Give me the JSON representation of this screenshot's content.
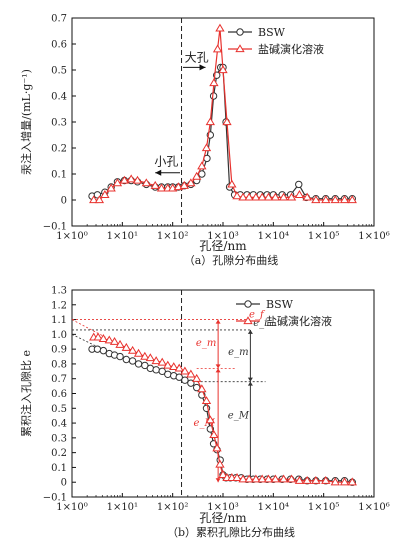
{
  "chart_data": [
    {
      "type": "line",
      "xscale": "log",
      "xlim": [
        1,
        1000000
      ],
      "ylim": [
        -0.1,
        0.7
      ],
      "xlabel": "孔径/nm",
      "ylabel": "汞注入增量/(mL·g⁻¹)",
      "caption": "（a）孔隙分布曲线",
      "x_ticks": [
        "1×10⁰",
        "1×10¹",
        "1×10²",
        "1×10³",
        "1×10⁴",
        "1×10⁵",
        "1×10⁶"
      ],
      "y_ticks": [
        "−0.1",
        "0",
        "0.1",
        "0.2",
        "0.3",
        "0.4",
        "0.5",
        "0.6",
        "0.7"
      ],
      "legend_position": "top-right",
      "divider_x": 150,
      "annotations": [
        {
          "text": "大孔",
          "x": 160,
          "y": 0.51,
          "arrow": "right"
        },
        {
          "text": "小孔",
          "x": 140,
          "y": 0.105,
          "arrow": "left"
        }
      ],
      "series": [
        {
          "name": "BSW",
          "color": "#333333",
          "marker": "circle",
          "points": [
            [
              2.5,
              0.015
            ],
            [
              3.2,
              0.02
            ],
            [
              4.5,
              0.03
            ],
            [
              6,
              0.05
            ],
            [
              8,
              0.07
            ],
            [
              11,
              0.075
            ],
            [
              15,
              0.075
            ],
            [
              20,
              0.07
            ],
            [
              30,
              0.06
            ],
            [
              45,
              0.05
            ],
            [
              60,
              0.05
            ],
            [
              80,
              0.05
            ],
            [
              100,
              0.05
            ],
            [
              130,
              0.05
            ],
            [
              170,
              0.055
            ],
            [
              230,
              0.06
            ],
            [
              300,
              0.075
            ],
            [
              380,
              0.1
            ],
            [
              480,
              0.16
            ],
            [
              560,
              0.25
            ],
            [
              650,
              0.4
            ],
            [
              750,
              0.48
            ],
            [
              900,
              0.51
            ],
            [
              1000,
              0.51
            ],
            [
              1150,
              0.3
            ],
            [
              1350,
              0.05
            ],
            [
              1700,
              0.02
            ],
            [
              2200,
              0.02
            ],
            [
              3000,
              0.02
            ],
            [
              4000,
              0.02
            ],
            [
              5500,
              0.02
            ],
            [
              7500,
              0.02
            ],
            [
              10000,
              0.02
            ],
            [
              15000,
              0.02
            ],
            [
              22000,
              0.02
            ],
            [
              32000,
              0.06
            ],
            [
              45000,
              0.01
            ],
            [
              70000,
              0.005
            ],
            [
              110000,
              0.005
            ],
            [
              170000,
              0.005
            ],
            [
              260000,
              0.005
            ],
            [
              370000,
              0.005
            ]
          ]
        },
        {
          "name": "盐碱演化溶液",
          "color": "#e8322e",
          "marker": "triangle",
          "points": [
            [
              2.7,
              0.0
            ],
            [
              3.5,
              0.0
            ],
            [
              4.5,
              0.02
            ],
            [
              6,
              0.045
            ],
            [
              8,
              0.065
            ],
            [
              11,
              0.075
            ],
            [
              15,
              0.08
            ],
            [
              20,
              0.075
            ],
            [
              30,
              0.065
            ],
            [
              45,
              0.055
            ],
            [
              60,
              0.045
            ],
            [
              80,
              0.045
            ],
            [
              100,
              0.045
            ],
            [
              130,
              0.05
            ],
            [
              170,
              0.055
            ],
            [
              230,
              0.065
            ],
            [
              300,
              0.09
            ],
            [
              380,
              0.13
            ],
            [
              470,
              0.2
            ],
            [
              560,
              0.3
            ],
            [
              660,
              0.45
            ],
            [
              780,
              0.58
            ],
            [
              870,
              0.66
            ],
            [
              1000,
              0.5
            ],
            [
              1200,
              0.3
            ],
            [
              1500,
              0.06
            ],
            [
              1900,
              0.015
            ],
            [
              2500,
              0.01
            ],
            [
              3300,
              0.01
            ],
            [
              4500,
              0.01
            ],
            [
              6000,
              0.01
            ],
            [
              8000,
              0.01
            ],
            [
              11000,
              0.01
            ],
            [
              16000,
              0.01
            ],
            [
              23000,
              0.01
            ],
            [
              33000,
              0.02
            ],
            [
              47000,
              0.01
            ],
            [
              70000,
              0.0
            ],
            [
              110000,
              0.0
            ],
            [
              170000,
              0.0
            ],
            [
              260000,
              0.0
            ],
            [
              370000,
              0.0
            ]
          ]
        }
      ]
    },
    {
      "type": "line",
      "xscale": "log",
      "xlim": [
        1,
        1000000
      ],
      "ylim": [
        -0.1,
        1.3
      ],
      "xlabel": "孔径/nm",
      "ylabel": "累积注入孔隙比 e",
      "caption": "（b）累积孔隙比分布曲线",
      "x_ticks": [
        "1×10⁰",
        "1×10¹",
        "1×10²",
        "1×10³",
        "1×10⁴",
        "1×10⁵",
        "1×10⁶"
      ],
      "y_ticks": [
        "−0.1",
        "0",
        "0.1",
        "0.2",
        "0.3",
        "0.4",
        "0.5",
        "0.6",
        "0.7",
        "0.8",
        "0.9",
        "1.0",
        "1.1",
        "1.2",
        "1.3"
      ],
      "legend_position": "top-right",
      "divider_x": 150,
      "annotations": [
        {
          "text": "e_f",
          "color": "#e8322e"
        },
        {
          "text": "e_i",
          "color": "#333333"
        },
        {
          "text": "e_m",
          "color": "#e8322e"
        },
        {
          "text": "e_m",
          "color": "#333333"
        },
        {
          "text": "e_M",
          "color": "#e8322e"
        },
        {
          "text": "e_M",
          "color": "#333333"
        }
      ],
      "reference_lines": {
        "red_top": 1.1,
        "black_top": 1.03,
        "red_mid": 0.77,
        "black_mid": 0.68,
        "red_bracket_x": 800,
        "black_bracket_x": 3500
      },
      "series": [
        {
          "name": "BSW",
          "color": "#333333",
          "marker": "circle",
          "points": [
            [
              2.5,
              0.9
            ],
            [
              3.2,
              0.9
            ],
            [
              4.2,
              0.89
            ],
            [
              5.5,
              0.87
            ],
            [
              7,
              0.86
            ],
            [
              9,
              0.85
            ],
            [
              12,
              0.83
            ],
            [
              16,
              0.82
            ],
            [
              21,
              0.8
            ],
            [
              28,
              0.79
            ],
            [
              36,
              0.77
            ],
            [
              47,
              0.76
            ],
            [
              62,
              0.75
            ],
            [
              80,
              0.73
            ],
            [
              105,
              0.72
            ],
            [
              135,
              0.71
            ],
            [
              175,
              0.69
            ],
            [
              230,
              0.67
            ],
            [
              300,
              0.64
            ],
            [
              380,
              0.59
            ],
            [
              470,
              0.5
            ],
            [
              560,
              0.36
            ],
            [
              650,
              0.26
            ],
            [
              760,
              0.22
            ],
            [
              880,
              0.15
            ],
            [
              1000,
              0.05
            ],
            [
              1150,
              0.03
            ],
            [
              1400,
              0.03
            ],
            [
              1800,
              0.03
            ],
            [
              2300,
              0.03
            ],
            [
              3000,
              0.02
            ],
            [
              4000,
              0.02
            ],
            [
              5500,
              0.02
            ],
            [
              7500,
              0.02
            ],
            [
              10000,
              0.02
            ],
            [
              15000,
              0.02
            ],
            [
              22000,
              0.02
            ],
            [
              32000,
              0.02
            ],
            [
              47000,
              0.01
            ],
            [
              70000,
              0.01
            ],
            [
              110000,
              0.01
            ],
            [
              170000,
              0.01
            ],
            [
              260000,
              0.01
            ],
            [
              370000,
              0.0
            ]
          ]
        },
        {
          "name": "盐碱演化溶液",
          "color": "#e8322e",
          "marker": "triangle",
          "points": [
            [
              2.7,
              0.98
            ],
            [
              3.3,
              0.98
            ],
            [
              4.2,
              0.97
            ],
            [
              5.5,
              0.96
            ],
            [
              7,
              0.95
            ],
            [
              9,
              0.93
            ],
            [
              12,
              0.91
            ],
            [
              16,
              0.89
            ],
            [
              21,
              0.87
            ],
            [
              28,
              0.85
            ],
            [
              36,
              0.84
            ],
            [
              47,
              0.82
            ],
            [
              62,
              0.81
            ],
            [
              80,
              0.79
            ],
            [
              105,
              0.78
            ],
            [
              135,
              0.77
            ],
            [
              175,
              0.75
            ],
            [
              230,
              0.73
            ],
            [
              300,
              0.7
            ],
            [
              380,
              0.63
            ],
            [
              470,
              0.55
            ],
            [
              560,
              0.42
            ],
            [
              660,
              0.32
            ],
            [
              760,
              0.23
            ],
            [
              870,
              0.12
            ],
            [
              1000,
              0.05
            ],
            [
              1200,
              0.03
            ],
            [
              1500,
              0.03
            ],
            [
              1900,
              0.03
            ],
            [
              2500,
              0.02
            ],
            [
              3300,
              0.02
            ],
            [
              4500,
              0.02
            ],
            [
              6000,
              0.02
            ],
            [
              8000,
              0.02
            ],
            [
              11000,
              0.02
            ],
            [
              16000,
              0.02
            ],
            [
              23000,
              0.02
            ],
            [
              33000,
              0.01
            ],
            [
              47000,
              0.01
            ],
            [
              70000,
              0.01
            ],
            [
              110000,
              0.01
            ],
            [
              170000,
              0.0
            ],
            [
              260000,
              0.0
            ],
            [
              370000,
              0.0
            ]
          ]
        }
      ]
    }
  ]
}
